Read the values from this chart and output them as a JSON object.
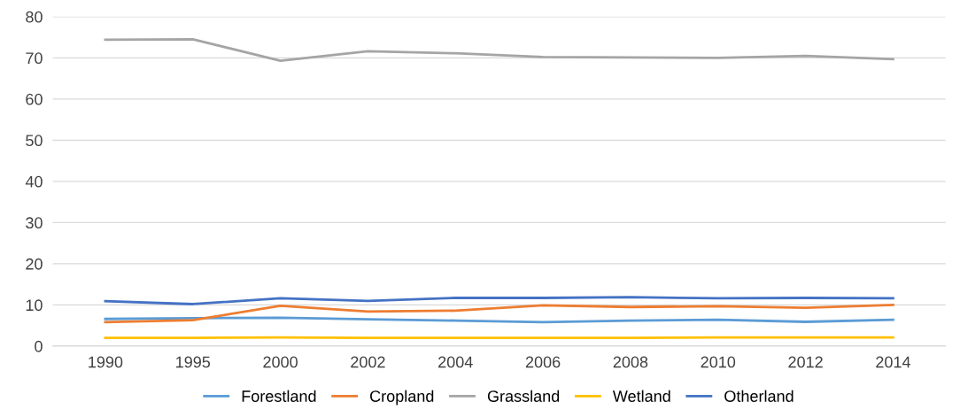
{
  "chart_data": {
    "type": "line",
    "categories": [
      "1990",
      "1995",
      "2000",
      "2002",
      "2004",
      "2006",
      "2008",
      "2010",
      "2012",
      "2014"
    ],
    "series": [
      {
        "name": "Forestland",
        "color": "#5b9bd5",
        "values": [
          6.6,
          6.8,
          6.9,
          6.5,
          6.2,
          5.8,
          6.2,
          6.4,
          5.9,
          6.4
        ]
      },
      {
        "name": "Cropland",
        "color": "#ed7d31",
        "values": [
          5.8,
          6.3,
          9.8,
          8.4,
          8.6,
          9.9,
          9.5,
          9.7,
          9.3,
          10.0
        ]
      },
      {
        "name": "Grassland",
        "color": "#a5a5a5",
        "values": [
          74.4,
          74.5,
          69.3,
          71.6,
          71.1,
          70.2,
          70.1,
          70.0,
          70.5,
          69.7
        ]
      },
      {
        "name": "Wetland",
        "color": "#ffc000",
        "values": [
          2.0,
          2.0,
          2.1,
          2.0,
          2.0,
          2.0,
          2.0,
          2.1,
          2.1,
          2.1
        ]
      },
      {
        "name": "Otherland",
        "color": "#4472c4",
        "values": [
          10.9,
          10.2,
          11.6,
          11.0,
          11.7,
          11.7,
          11.9,
          11.6,
          11.7,
          11.6
        ]
      }
    ],
    "ylim": [
      0,
      80
    ],
    "yticks": [
      0,
      10,
      20,
      30,
      40,
      50,
      60,
      70,
      80
    ],
    "grid": "y",
    "legend": "bottom",
    "marker": "none",
    "line_style": "solid"
  }
}
